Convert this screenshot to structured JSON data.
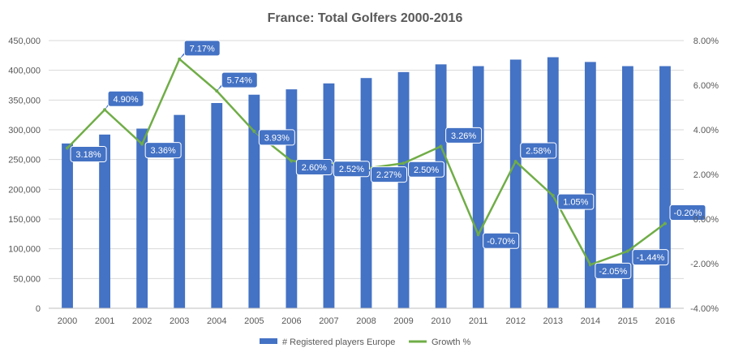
{
  "chart_data": {
    "type": "bar",
    "title": "France: Total Golfers 2000-2016",
    "xlabel": "",
    "ylabel": "",
    "categories": [
      "2000",
      "2001",
      "2002",
      "2003",
      "2004",
      "2005",
      "2006",
      "2007",
      "2008",
      "2009",
      "2010",
      "2011",
      "2012",
      "2013",
      "2014",
      "2015",
      "2016"
    ],
    "y_left": {
      "range": [
        0,
        450000
      ],
      "ticks": [
        "0",
        "50,000",
        "100,000",
        "150,000",
        "200,000",
        "250,000",
        "300,000",
        "350,000",
        "400,000",
        "450,000"
      ],
      "tick_values": [
        0,
        50000,
        100000,
        150000,
        200000,
        250000,
        300000,
        350000,
        400000,
        450000
      ]
    },
    "y_right": {
      "range": [
        -4,
        8
      ],
      "ticks": [
        "-4.00%",
        "-2.00%",
        "0.00%",
        "2.00%",
        "4.00%",
        "6.00%",
        "8.00%"
      ],
      "tick_values": [
        -4,
        -2,
        0,
        2,
        4,
        6,
        8
      ]
    },
    "grid": true,
    "legend_position": "bottom",
    "series": [
      {
        "name": "# Registered players Europe",
        "type": "bar",
        "axis": "left",
        "color": "#4472C4",
        "values": [
          277000,
          292000,
          302000,
          325000,
          345000,
          359000,
          368000,
          378000,
          387000,
          397000,
          410000,
          407000,
          418000,
          422000,
          414000,
          407000,
          407000
        ]
      },
      {
        "name": "Growth %",
        "type": "line",
        "axis": "right",
        "color": "#70AD47",
        "values": [
          3.18,
          4.9,
          3.36,
          7.17,
          5.74,
          3.93,
          2.6,
          2.52,
          2.27,
          2.5,
          3.26,
          -0.7,
          2.58,
          1.05,
          -2.05,
          -1.44,
          -0.2
        ],
        "labels": [
          "3.18%",
          "4.90%",
          "3.36%",
          "7.17%",
          "5.74%",
          "3.93%",
          "2.60%",
          "2.52%",
          "2.27%",
          "2.50%",
          "3.26%",
          "-0.70%",
          "2.58%",
          "1.05%",
          "-2.05%",
          "-1.44%",
          "-0.20%"
        ]
      }
    ]
  }
}
